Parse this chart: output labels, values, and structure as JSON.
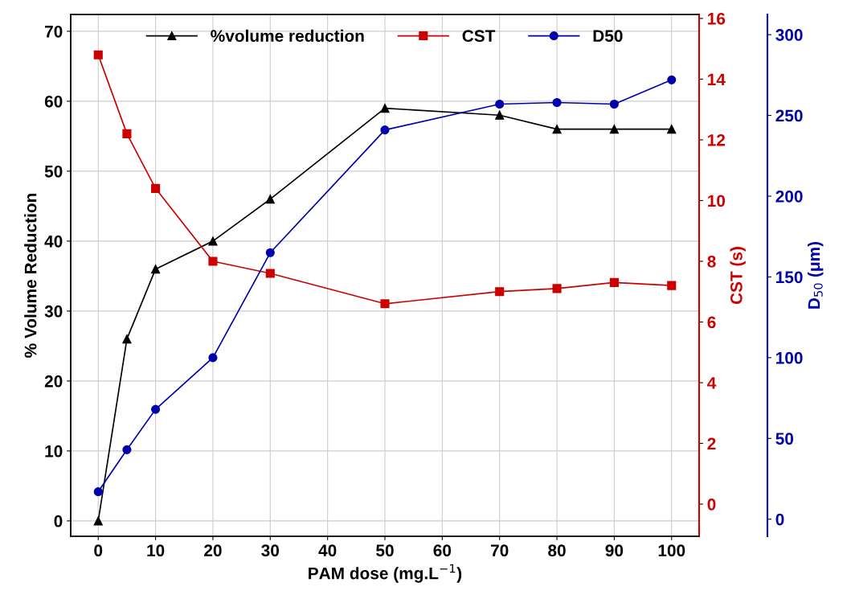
{
  "chart_data": {
    "type": "line",
    "xlabel": "PAM dose (mg.L$^{−1}$)",
    "ylabel": "% Volume Reduction",
    "y2label": "CST (s)",
    "y3label": "D$_{50}$ (μm)",
    "x": [
      0,
      5,
      10,
      20,
      30,
      50,
      70,
      80,
      90,
      100
    ],
    "xlim": [
      -4.8,
      104.8
    ],
    "xticks": [
      0,
      10,
      20,
      30,
      40,
      50,
      60,
      70,
      80,
      90,
      100
    ],
    "ylim": [
      -2.2,
      72.4
    ],
    "yticks": [
      0,
      10,
      20,
      30,
      40,
      50,
      60,
      70
    ],
    "y2lim": [
      -1.06,
      16.13
    ],
    "y2ticks": [
      0,
      2,
      4,
      6,
      8,
      10,
      12,
      14,
      16
    ],
    "y3lim": [
      -10.6,
      312.5
    ],
    "y3ticks": [
      0,
      50,
      100,
      150,
      200,
      250,
      300
    ],
    "grid": true,
    "legend": "top",
    "line_style": "solid",
    "series": [
      {
        "name": "%volume reduction",
        "color": "#000000",
        "marker": "triangle",
        "values": [
          0,
          26,
          36,
          40,
          46,
          59,
          58,
          56,
          56,
          56
        ]
      },
      {
        "name": "CST",
        "color": "#cc0000",
        "marker": "square",
        "axis": "y2",
        "values": [
          14.8,
          12.2,
          10.4,
          8.0,
          7.6,
          6.6,
          7.0,
          7.1,
          7.3,
          7.2
        ]
      },
      {
        "name": "D50",
        "color": "#0000aa",
        "marker": "circle",
        "axis": "y3",
        "values": [
          17,
          43,
          68,
          100,
          165,
          241,
          257,
          258,
          257,
          272
        ]
      }
    ]
  }
}
